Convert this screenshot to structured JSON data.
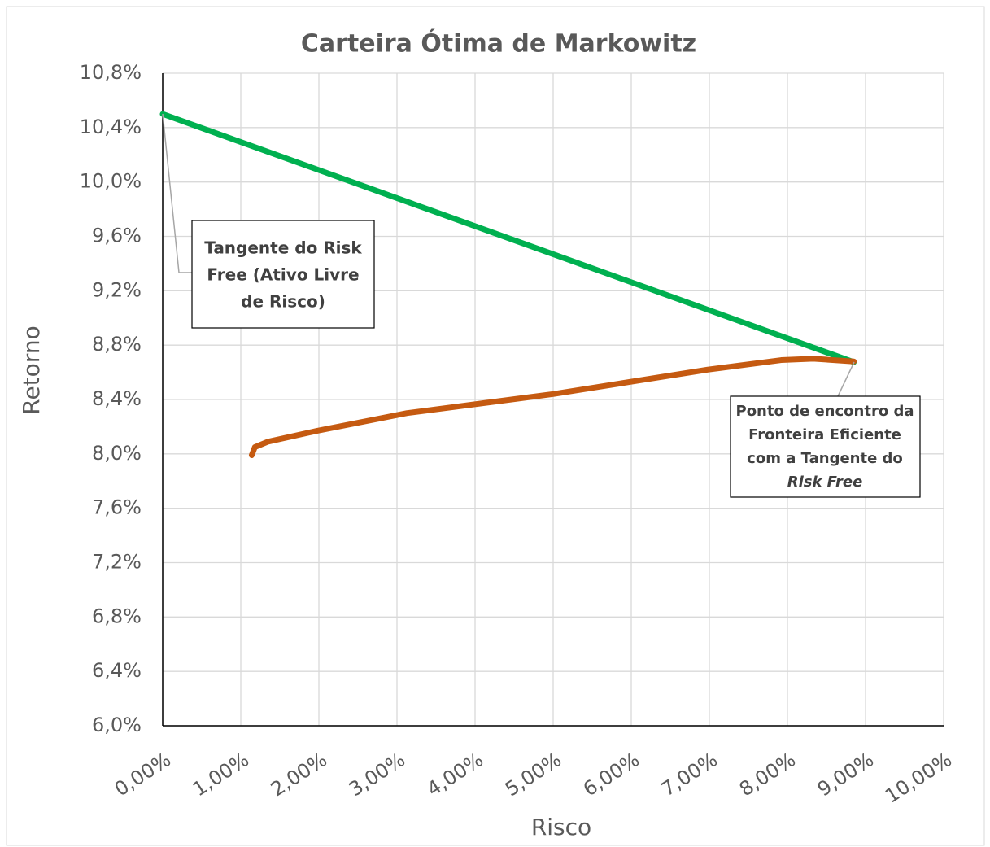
{
  "chart_data": {
    "type": "line",
    "title": "Carteira Ótima de Markowitz",
    "x_label": "Risco",
    "y_label": "Retorno",
    "xlim": [
      0,
      10
    ],
    "ylim": [
      6.0,
      10.8
    ],
    "xticks": [
      {
        "value": 0,
        "label": "0,00%"
      },
      {
        "value": 1,
        "label": "1,00%"
      },
      {
        "value": 2,
        "label": "2,00%"
      },
      {
        "value": 3,
        "label": "3,00%"
      },
      {
        "value": 4,
        "label": "4,00%"
      },
      {
        "value": 5,
        "label": "5,00%"
      },
      {
        "value": 6,
        "label": "6,00%"
      },
      {
        "value": 7,
        "label": "7,00%"
      },
      {
        "value": 8,
        "label": "8,00%"
      },
      {
        "value": 9,
        "label": "9,00%"
      },
      {
        "value": 10,
        "label": "10,00%"
      }
    ],
    "yticks": [
      {
        "value": 6.0,
        "label": "6,0%"
      },
      {
        "value": 6.4,
        "label": "6,4%"
      },
      {
        "value": 6.8,
        "label": "6,8%"
      },
      {
        "value": 7.2,
        "label": "7,2%"
      },
      {
        "value": 7.6,
        "label": "7,6%"
      },
      {
        "value": 8.0,
        "label": "8,0%"
      },
      {
        "value": 8.4,
        "label": "8,4%"
      },
      {
        "value": 8.8,
        "label": "8,8%"
      },
      {
        "value": 9.2,
        "label": "9,2%"
      },
      {
        "value": 9.6,
        "label": "9,6%"
      },
      {
        "value": 10.0,
        "label": "10,0%"
      },
      {
        "value": 10.4,
        "label": "10,4%"
      },
      {
        "value": 10.8,
        "label": "10,8%"
      }
    ],
    "grid": true,
    "series": [
      {
        "color": "#00b050",
        "x": [
          0,
          8.85
        ],
        "values": [
          10.5,
          8.675
        ]
      },
      {
        "color": "#c55a11",
        "x": [
          1.14,
          1.18,
          1.35,
          1.98,
          3.13,
          5.0,
          6.98,
          7.92,
          8.33,
          8.85
        ],
        "values": [
          7.99,
          8.05,
          8.09,
          8.17,
          8.3,
          8.44,
          8.62,
          8.69,
          8.7,
          8.68
        ]
      }
    ],
    "annotations": [
      {
        "lines": [
          "Tangente do Risk",
          "Free (Ativo Livre",
          "de Risco)"
        ]
      },
      {
        "lines": [
          "Ponto de encontro da",
          "Fronteira Eficiente",
          "com a Tangente do",
          "Risk Free"
        ]
      }
    ]
  }
}
